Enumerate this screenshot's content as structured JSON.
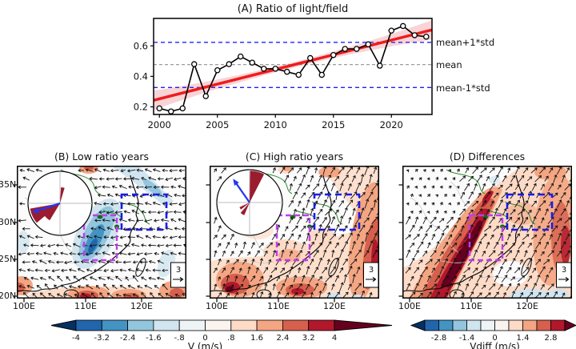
{
  "chart_data": [
    {
      "type": "line",
      "title": "(A) Ratio of light/field",
      "x": [
        2000,
        2001,
        2002,
        2003,
        2004,
        2005,
        2006,
        2007,
        2008,
        2009,
        2010,
        2011,
        2012,
        2013,
        2014,
        2015,
        2016,
        2017,
        2018,
        2019,
        2020,
        2021,
        2022,
        2023
      ],
      "y": [
        0.19,
        0.17,
        0.19,
        0.48,
        0.27,
        0.44,
        0.48,
        0.53,
        0.49,
        0.45,
        0.45,
        0.43,
        0.41,
        0.52,
        0.41,
        0.54,
        0.58,
        0.58,
        0.61,
        0.47,
        0.7,
        0.73,
        0.67,
        0.66
      ],
      "xlim": [
        1999.5,
        2023.5
      ],
      "ylim": [
        0.15,
        0.78
      ],
      "xticks": [
        2000,
        2005,
        2010,
        2015,
        2020
      ],
      "yticks": [
        0.2,
        0.4,
        0.6
      ],
      "hlines": {
        "mean": 0.477,
        "mean_plus_std": 0.623,
        "mean_minus_std": 0.327
      },
      "annotations": [
        "mean+1*std",
        "mean",
        "mean-1*std"
      ],
      "trend": {
        "x_start": 1999.5,
        "x_end": 2023.5,
        "y_start": 0.243,
        "y_end": 0.705
      }
    },
    {
      "type": "heatmap",
      "id": "b",
      "title": "(B) Low ratio years",
      "colorbar": "V (m/s)",
      "value_range": [
        -4,
        4
      ],
      "arrow_field_deg": 185,
      "rose": {
        "petals": [
          {
            "az": 245,
            "len": 0.95,
            "width": 30
          },
          {
            "az": 222,
            "len": 0.62,
            "width": 22
          },
          {
            "az": 10,
            "len": 0.5,
            "width": 13
          }
        ],
        "arrow_az": 252,
        "arrow_len": 0.92
      }
    },
    {
      "type": "heatmap",
      "id": "c",
      "title": "(C) High ratio years",
      "colorbar": "V (m/s)",
      "value_range": [
        -4,
        4
      ],
      "arrow_field_deg": -62,
      "rose": {
        "petals": [
          {
            "az": 14,
            "len": 0.97,
            "width": 26
          },
          {
            "az": 212,
            "len": 0.42,
            "width": 18
          },
          {
            "az": 238,
            "len": 0.34,
            "width": 14
          }
        ],
        "arrow_az": 325,
        "arrow_len": 0.88
      }
    },
    {
      "type": "heatmap",
      "id": "d",
      "title": "(D) Differences",
      "colorbar": "Vdiff (m/s)",
      "value_range": [
        -3.5,
        3.5
      ],
      "arrow_field_deg": -55,
      "rose": null
    }
  ],
  "map_row": {
    "xtick_labels": [
      "100E",
      "110E",
      "120E"
    ],
    "ytick_labels": [
      "35N",
      "30N",
      "25N",
      "20N"
    ],
    "ref_vector_label": "3"
  },
  "colorbars": [
    {
      "label": "V (m/s)",
      "tick_labels": [
        "-4",
        "-3.2",
        "-2.4",
        "-1.6",
        "-.8",
        "0",
        ".8",
        "1.6",
        "2.4",
        "3.2",
        "4"
      ],
      "tick_positions": [
        0,
        1,
        2,
        3,
        4,
        5,
        6,
        7,
        8,
        9,
        10
      ]
    },
    {
      "label": "Vdiff (m/s)",
      "tick_labels": [
        "-2.8",
        "-1.4",
        "0",
        "1.4",
        "2.8"
      ],
      "tick_positions": [
        1,
        3,
        5,
        7,
        9
      ]
    }
  ],
  "colors": {
    "background": "#fbfbfb",
    "colormap_under": "#053061",
    "colormap": [
      "#2166ac",
      "#4393c3",
      "#92c5de",
      "#d1e5f0",
      "#eef3f5",
      "#faf3ef",
      "#fddbc7",
      "#f4a582",
      "#d6604d",
      "#b2182b"
    ],
    "colormap_over": "#67001f",
    "trend": "#ee1c1c",
    "trend_band": "#f5b8bd",
    "series": "#000000",
    "mean_line": "#909090",
    "std_line": "#2020ff",
    "box_magenta": "#c13cf0",
    "box_blue": "#1b1be8",
    "rose_red": "#9b1c2f",
    "rose_arrow": "#2438f0",
    "coast": "#000000",
    "province_green": "#2d8a2d",
    "lake_green": "#156b15",
    "county_gray": "#c9c9c9"
  }
}
